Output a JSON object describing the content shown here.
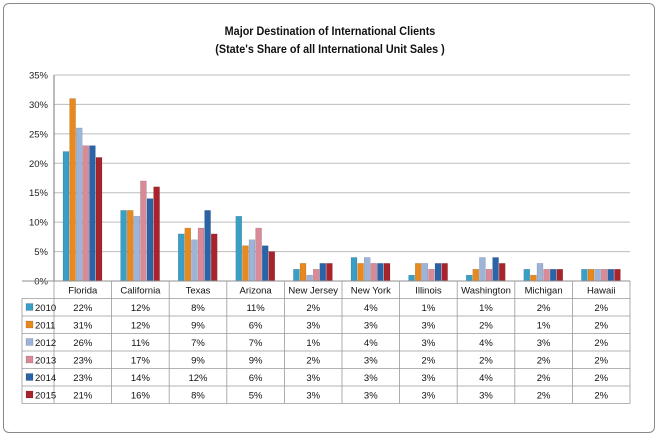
{
  "chart_data": {
    "type": "bar",
    "title": "Major Destination of International Clients",
    "subtitle": "(State's Share of all International Unit Sales )",
    "xlabel": "",
    "ylabel": "",
    "ylim": [
      0,
      35
    ],
    "yticks": [
      "0%",
      "5%",
      "10%",
      "15%",
      "20%",
      "25%",
      "30%",
      "35%"
    ],
    "grid": true,
    "legend": "table-bottom",
    "categories": [
      "Florida",
      "California",
      "Texas",
      "Arizona",
      "New Jersey",
      "New York",
      "Illinois",
      "Washington",
      "Michigan",
      "Hawaii"
    ],
    "series": [
      {
        "name": "2010",
        "color": "#3a9fc4",
        "values": [
          22,
          12,
          8,
          11,
          2,
          4,
          1,
          1,
          2,
          2
        ],
        "labels": [
          "22%",
          "12%",
          "8%",
          "11%",
          "2%",
          "4%",
          "1%",
          "1%",
          "2%",
          "2%"
        ]
      },
      {
        "name": "2011",
        "color": "#e8891e",
        "values": [
          31,
          12,
          9,
          6,
          3,
          3,
          3,
          2,
          1,
          2
        ],
        "labels": [
          "31%",
          "12%",
          "9%",
          "6%",
          "3%",
          "3%",
          "3%",
          "2%",
          "1%",
          "2%"
        ]
      },
      {
        "name": "2012",
        "color": "#9db3d8",
        "values": [
          26,
          11,
          7,
          7,
          1,
          4,
          3,
          4,
          3,
          2
        ],
        "labels": [
          "26%",
          "11%",
          "7%",
          "7%",
          "1%",
          "4%",
          "3%",
          "4%",
          "3%",
          "2%"
        ]
      },
      {
        "name": "2013",
        "color": "#d98a98",
        "values": [
          23,
          17,
          9,
          9,
          2,
          3,
          2,
          2,
          2,
          2
        ],
        "labels": [
          "23%",
          "17%",
          "9%",
          "9%",
          "2%",
          "3%",
          "2%",
          "2%",
          "2%",
          "2%"
        ]
      },
      {
        "name": "2014",
        "color": "#2b63a8",
        "values": [
          23,
          14,
          12,
          6,
          3,
          3,
          3,
          4,
          2,
          2
        ],
        "labels": [
          "23%",
          "14%",
          "12%",
          "6%",
          "3%",
          "3%",
          "3%",
          "4%",
          "2%",
          "2%"
        ]
      },
      {
        "name": "2015",
        "color": "#a8232c",
        "values": [
          21,
          16,
          8,
          5,
          3,
          3,
          3,
          3,
          2,
          2
        ],
        "labels": [
          "21%",
          "16%",
          "8%",
          "5%",
          "3%",
          "3%",
          "3%",
          "3%",
          "2%",
          "2%"
        ]
      }
    ]
  }
}
